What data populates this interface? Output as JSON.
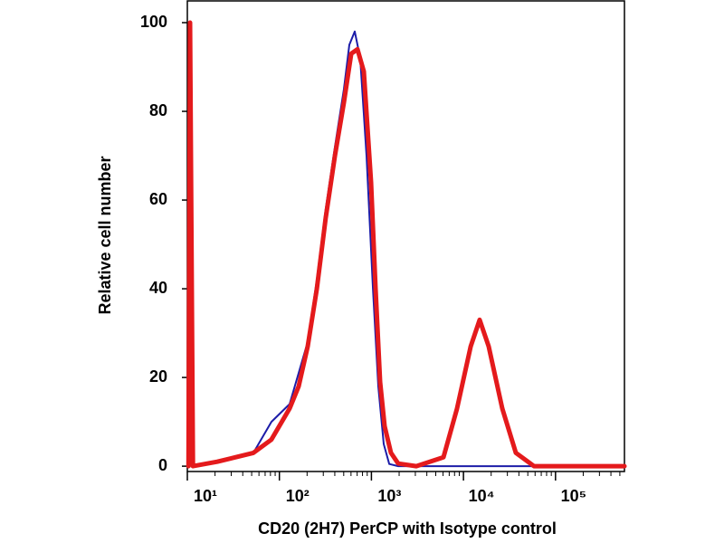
{
  "chart_data": {
    "type": "line",
    "xlabel": "CD20 (2H7) PerCP with Isotype control",
    "ylabel": "Relative cell number",
    "xscale": "log",
    "xlim": [
      10,
      561000
    ],
    "ylim": [
      -1.2,
      104.9
    ],
    "xticks": [
      {
        "value": 10,
        "label": "10¹"
      },
      {
        "value": 100,
        "label": "10²"
      },
      {
        "value": 1000,
        "label": "10³"
      },
      {
        "value": 10000,
        "label": "10⁴"
      },
      {
        "value": 100000,
        "label": "10⁵"
      }
    ],
    "yticks": [
      0,
      20,
      40,
      60,
      80,
      100
    ],
    "series": [
      {
        "color": "#1c1ca8",
        "width": 2,
        "x": [
          10.3,
          10.7,
          11.5,
          21.1,
          52.2,
          82,
          129,
          203,
          255,
          319,
          401,
          502,
          575,
          659,
          755,
          885,
          1038,
          1188,
          1361,
          1560,
          1955,
          561000
        ],
        "values": [
          0,
          100,
          0,
          1,
          3,
          10,
          14,
          28,
          42,
          58,
          72,
          85,
          95,
          98,
          92,
          70,
          40,
          18,
          5,
          0.5,
          0,
          0
        ]
      },
      {
        "color": "#e41a1c",
        "width": 5,
        "x": [
          10.3,
          10.7,
          11.5,
          21.1,
          33.2,
          52.2,
          82,
          129,
          162,
          203,
          255,
          319,
          401,
          502,
          603,
          706,
          827,
          991,
          1110,
          1242,
          1391,
          1630,
          1955,
          3073,
          6067,
          8515,
          11970,
          15000,
          18800,
          26400,
          37100,
          58400,
          561000
        ],
        "values": [
          0,
          100,
          0,
          1,
          2,
          3,
          6,
          13,
          18,
          27,
          40,
          56,
          70,
          82,
          93,
          94,
          89,
          64,
          40,
          19,
          9,
          3,
          0.6,
          0,
          2,
          13,
          27,
          33,
          27,
          13,
          3,
          0,
          0
        ]
      }
    ]
  }
}
